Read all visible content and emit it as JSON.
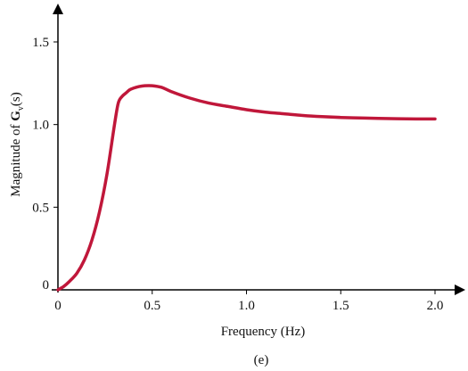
{
  "chart_data": {
    "type": "line",
    "title": "",
    "xlabel": "Frequency (Hz)",
    "ylabel": {
      "prefix": "Magnitude of ",
      "bold": "G",
      "subscript": "v",
      "suffix": "(s)"
    },
    "caption": "(e)",
    "xlim": [
      0,
      2.15
    ],
    "ylim": [
      0,
      1.7
    ],
    "xticks": [
      {
        "value": 0,
        "label": "0"
      },
      {
        "value": 0.5,
        "label": "0.5"
      },
      {
        "value": 1.0,
        "label": "1.0"
      },
      {
        "value": 1.5,
        "label": "1.5"
      },
      {
        "value": 2.0,
        "label": "2.0"
      }
    ],
    "yticks": [
      {
        "value": 0,
        "label": "0"
      },
      {
        "value": 0.5,
        "label": "0.5"
      },
      {
        "value": 1.0,
        "label": "1.0"
      },
      {
        "value": 1.5,
        "label": "1.5"
      }
    ],
    "grid": false,
    "series": [
      {
        "color": "#c0173a",
        "x": [
          0,
          0.03,
          0.06,
          0.1,
          0.14,
          0.18,
          0.22,
          0.26,
          0.3,
          0.32,
          0.34,
          0.36,
          0.38,
          0.4,
          0.43,
          0.46,
          0.5,
          0.55,
          0.6,
          0.7,
          0.8,
          0.9,
          1.0,
          1.1,
          1.2,
          1.3,
          1.4,
          1.5,
          1.6,
          1.7,
          1.8,
          1.9,
          2.0
        ],
        "y": [
          0.0,
          0.02,
          0.05,
          0.1,
          0.18,
          0.3,
          0.47,
          0.7,
          1.0,
          1.13,
          1.17,
          1.19,
          1.21,
          1.22,
          1.23,
          1.235,
          1.235,
          1.225,
          1.2,
          1.16,
          1.13,
          1.11,
          1.09,
          1.075,
          1.065,
          1.055,
          1.048,
          1.043,
          1.04,
          1.037,
          1.035,
          1.034,
          1.034
        ]
      }
    ]
  }
}
